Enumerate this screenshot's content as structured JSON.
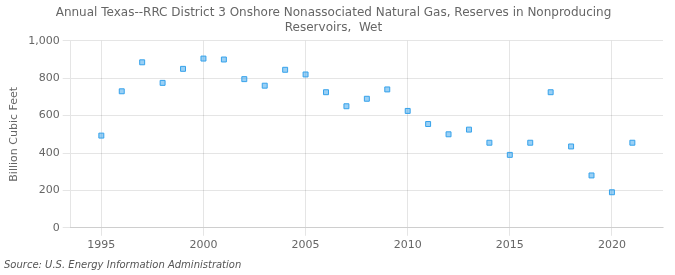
{
  "chart_data": {
    "type": "scatter",
    "title": "Annual Texas--RRC District 3 Onshore Nonassociated Natural Gas, Reserves in Nonproducing\nReservoirs,  Wet",
    "ylabel": "Billion Cubic Feet",
    "source": "Source: U.S. Energy Information Administration",
    "marker": "square",
    "x": [
      1995,
      1996,
      1997,
      1998,
      1999,
      2000,
      2001,
      2002,
      2003,
      2004,
      2005,
      2006,
      2007,
      2008,
      2009,
      2010,
      2011,
      2012,
      2013,
      2014,
      2015,
      2016,
      2017,
      2018,
      2019,
      2020,
      2021
    ],
    "values": [
      493,
      730,
      885,
      775,
      850,
      905,
      900,
      795,
      760,
      845,
      820,
      725,
      650,
      690,
      740,
      625,
      555,
      500,
      525,
      455,
      390,
      455,
      725,
      435,
      280,
      190,
      455
    ],
    "xlim": [
      1993.5,
      2022.5
    ],
    "xticks": [
      1995,
      2000,
      2005,
      2010,
      2015,
      2020
    ],
    "ylim": [
      0,
      1000
    ],
    "yticks": [
      0,
      200,
      400,
      600,
      800,
      {
        "value": 1000,
        "label": "1,000"
      }
    ],
    "grid": true
  }
}
